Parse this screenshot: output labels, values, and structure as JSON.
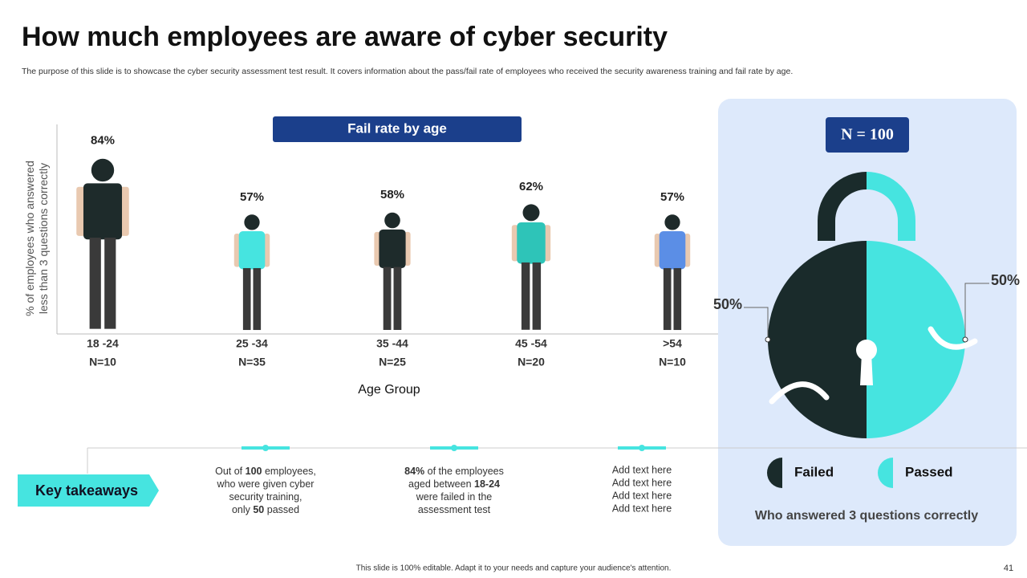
{
  "slide": {
    "title": "How much employees are aware of cyber security",
    "description": "The purpose of this slide is to showcase the cyber security assessment test result. It covers information about the pass/fail rate of employees who received the security awareness training and fail rate by age.",
    "takeaways_label": "Key takeaways",
    "takeaways": [
      {
        "parts": [
          "Out of ",
          "100",
          " employees, who were given cyber security training, only ",
          "50",
          " passed"
        ]
      },
      {
        "parts": [
          "84%",
          " of the employees aged between ",
          "18-24",
          " were failed in the assessment test"
        ]
      },
      {
        "lines": [
          "Add text here",
          "Add text here",
          "Add text here",
          "Add text here"
        ]
      }
    ],
    "footer": "This slide is 100% editable. Adapt it to your needs and capture your audience's attention.",
    "page_number": "41"
  },
  "chart_data": [
    {
      "type": "pictograph",
      "title": "Fail rate by age",
      "categories": [
        "18 -24",
        "25 -34",
        "35 -44",
        "45 -54",
        ">54"
      ],
      "category_notes": [
        "N=10",
        "N=35",
        "N=25",
        "N=20",
        "N=10"
      ],
      "values": [
        84,
        57,
        58,
        62,
        57
      ],
      "value_labels": [
        "84%",
        "57%",
        "58%",
        "62%",
        "57%"
      ],
      "colors": [
        "#1e2b2b",
        "#46e4e0",
        "#1e2b2b",
        "#2ec4b8",
        "#5b8ee6"
      ],
      "xlabel": "Age Group",
      "ylabel": "% of employees who answered less than 3 questions correctly"
    },
    {
      "type": "pie",
      "title": "N = 100",
      "categories": [
        "Failed",
        "Passed"
      ],
      "values": [
        50,
        50
      ],
      "value_labels": [
        "50%",
        "50%"
      ],
      "colors": [
        "#1a2b2b",
        "#46e4e0"
      ],
      "subtitle": "Who answered 3 questions correctly"
    }
  ]
}
